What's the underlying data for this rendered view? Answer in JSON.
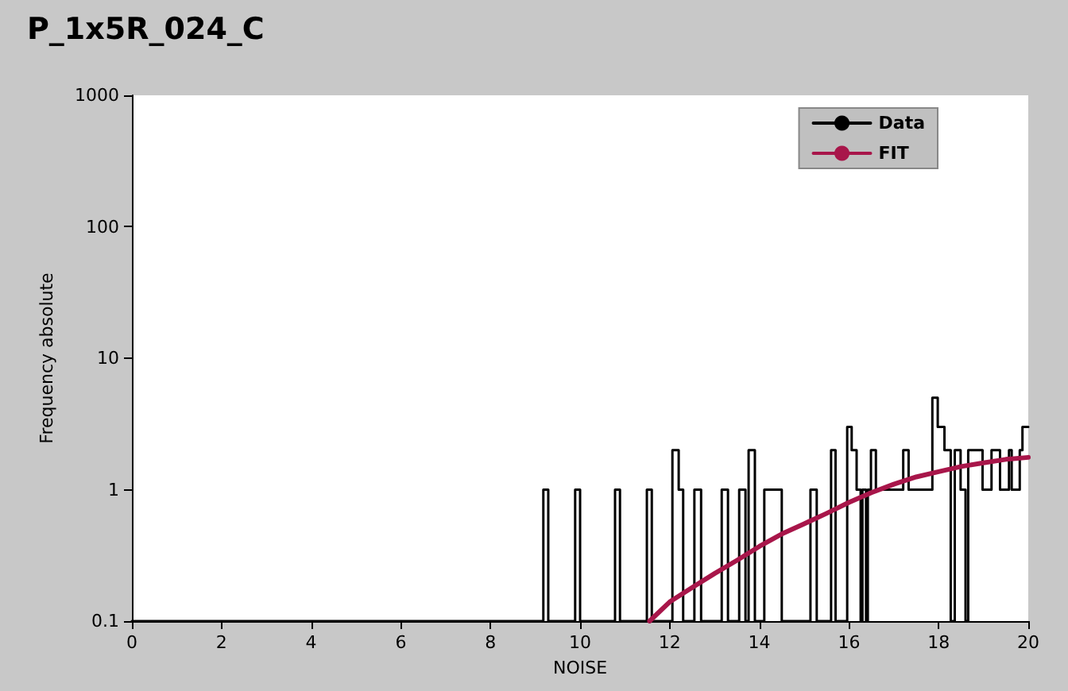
{
  "chart_data": {
    "type": "line",
    "title": "P_1x5R_024_C",
    "xlabel": "NOISE",
    "ylabel": "Frequency absolute",
    "log": "y",
    "xlim": [
      0,
      20
    ],
    "xticks": [
      0,
      2,
      4,
      6,
      8,
      10,
      12,
      14,
      16,
      18,
      20
    ],
    "ylim": [
      0.1,
      1000
    ],
    "yticks": [
      0.1,
      1,
      10,
      100,
      1000
    ],
    "grid": false,
    "legend": "top right",
    "marker": "none",
    "line_style": "solid",
    "series": [
      {
        "name": "Data",
        "type": "step",
        "color": "#000000",
        "x": [
          0,
          9.18,
          9.29,
          9.89,
          10.0,
          10.78,
          10.89,
          11.49,
          11.6,
          12.06,
          12.2,
          12.3,
          12.55,
          12.7,
          13.16,
          13.3,
          13.55,
          13.69,
          13.76,
          13.9,
          14.11,
          14.5,
          15.14,
          15.28,
          15.6,
          15.7,
          15.96,
          16.06,
          16.17,
          16.26,
          16.3,
          16.38,
          16.42,
          16.49,
          16.6,
          17.21,
          17.33,
          17.86,
          17.98,
          18.13,
          18.27,
          18.36,
          18.49,
          18.6,
          18.66,
          18.98,
          19.18,
          19.37,
          19.57,
          19.63,
          19.81,
          19.87,
          20
        ],
        "values": [
          0.1,
          1,
          0.1,
          1,
          0.1,
          1,
          0.1,
          1,
          0.1,
          2,
          1,
          0.1,
          1,
          0.1,
          1,
          0.1,
          1,
          0.1,
          2,
          0.1,
          1,
          0.1,
          1,
          0.1,
          2,
          0.1,
          3,
          2,
          1,
          0.1,
          1,
          0.1,
          1,
          2,
          1,
          2,
          1,
          5,
          3,
          2,
          0.1,
          2,
          1,
          0.1,
          2,
          1,
          2,
          1,
          2,
          1,
          2,
          3,
          3
        ]
      },
      {
        "name": "FIT",
        "color": "#a8164a",
        "x": [
          11.55,
          12,
          12.5,
          13,
          13.5,
          14,
          14.5,
          15,
          15.5,
          16,
          16.5,
          17,
          17.5,
          18,
          18.5,
          19,
          19.5,
          20
        ],
        "values": [
          0.1,
          0.14,
          0.18,
          0.23,
          0.29,
          0.37,
          0.46,
          0.55,
          0.66,
          0.8,
          0.95,
          1.1,
          1.25,
          1.37,
          1.5,
          1.6,
          1.7,
          1.76
        ]
      }
    ]
  }
}
